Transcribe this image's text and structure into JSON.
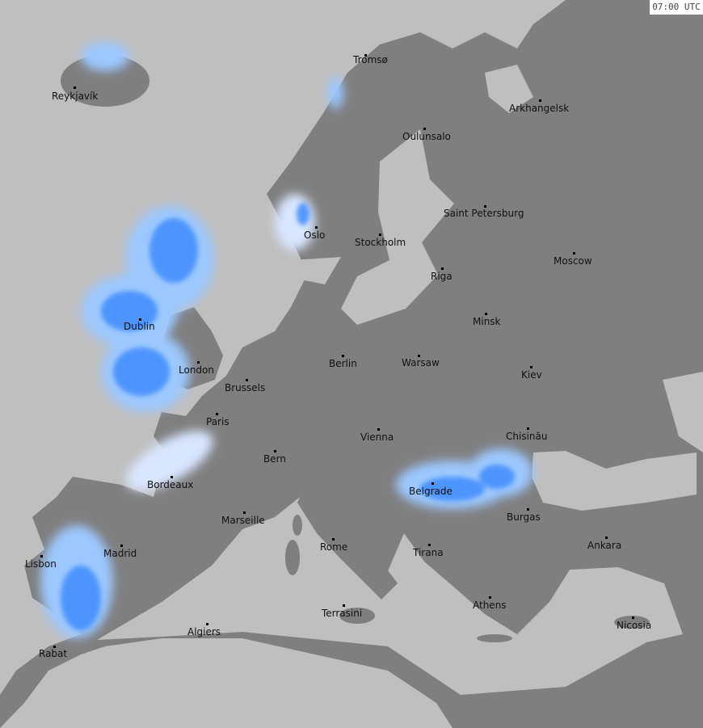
{
  "timestamp": "07:00 UTC",
  "colors": {
    "sea": "#bfbfbf",
    "land": "#7f7f7f",
    "radar_light": "#e8f0ff",
    "radar_mid": "#58a8ff",
    "radar_heavy": "#2060ff",
    "radar_extreme": "#a030e0"
  },
  "cities": [
    "Reykjavík",
    "Tromsø",
    "Arkhangelsk",
    "Oulunsalo",
    "Saint Petersburg",
    "Oslo",
    "Stockholm",
    "Moscow",
    "Riga",
    "Minsk",
    "Dublin",
    "Berlin",
    "Warsaw",
    "London",
    "Kiev",
    "Brussels",
    "Paris",
    "Vienna",
    "Chisinău",
    "Bern",
    "Bordeaux",
    "Belgrade",
    "Marseille",
    "Burgas",
    "Madrid",
    "Ankara",
    "Rome",
    "Tirana",
    "Lisbon",
    "Athens",
    "Terrasini",
    "Nicosia",
    "Algiers",
    "Rabat"
  ]
}
